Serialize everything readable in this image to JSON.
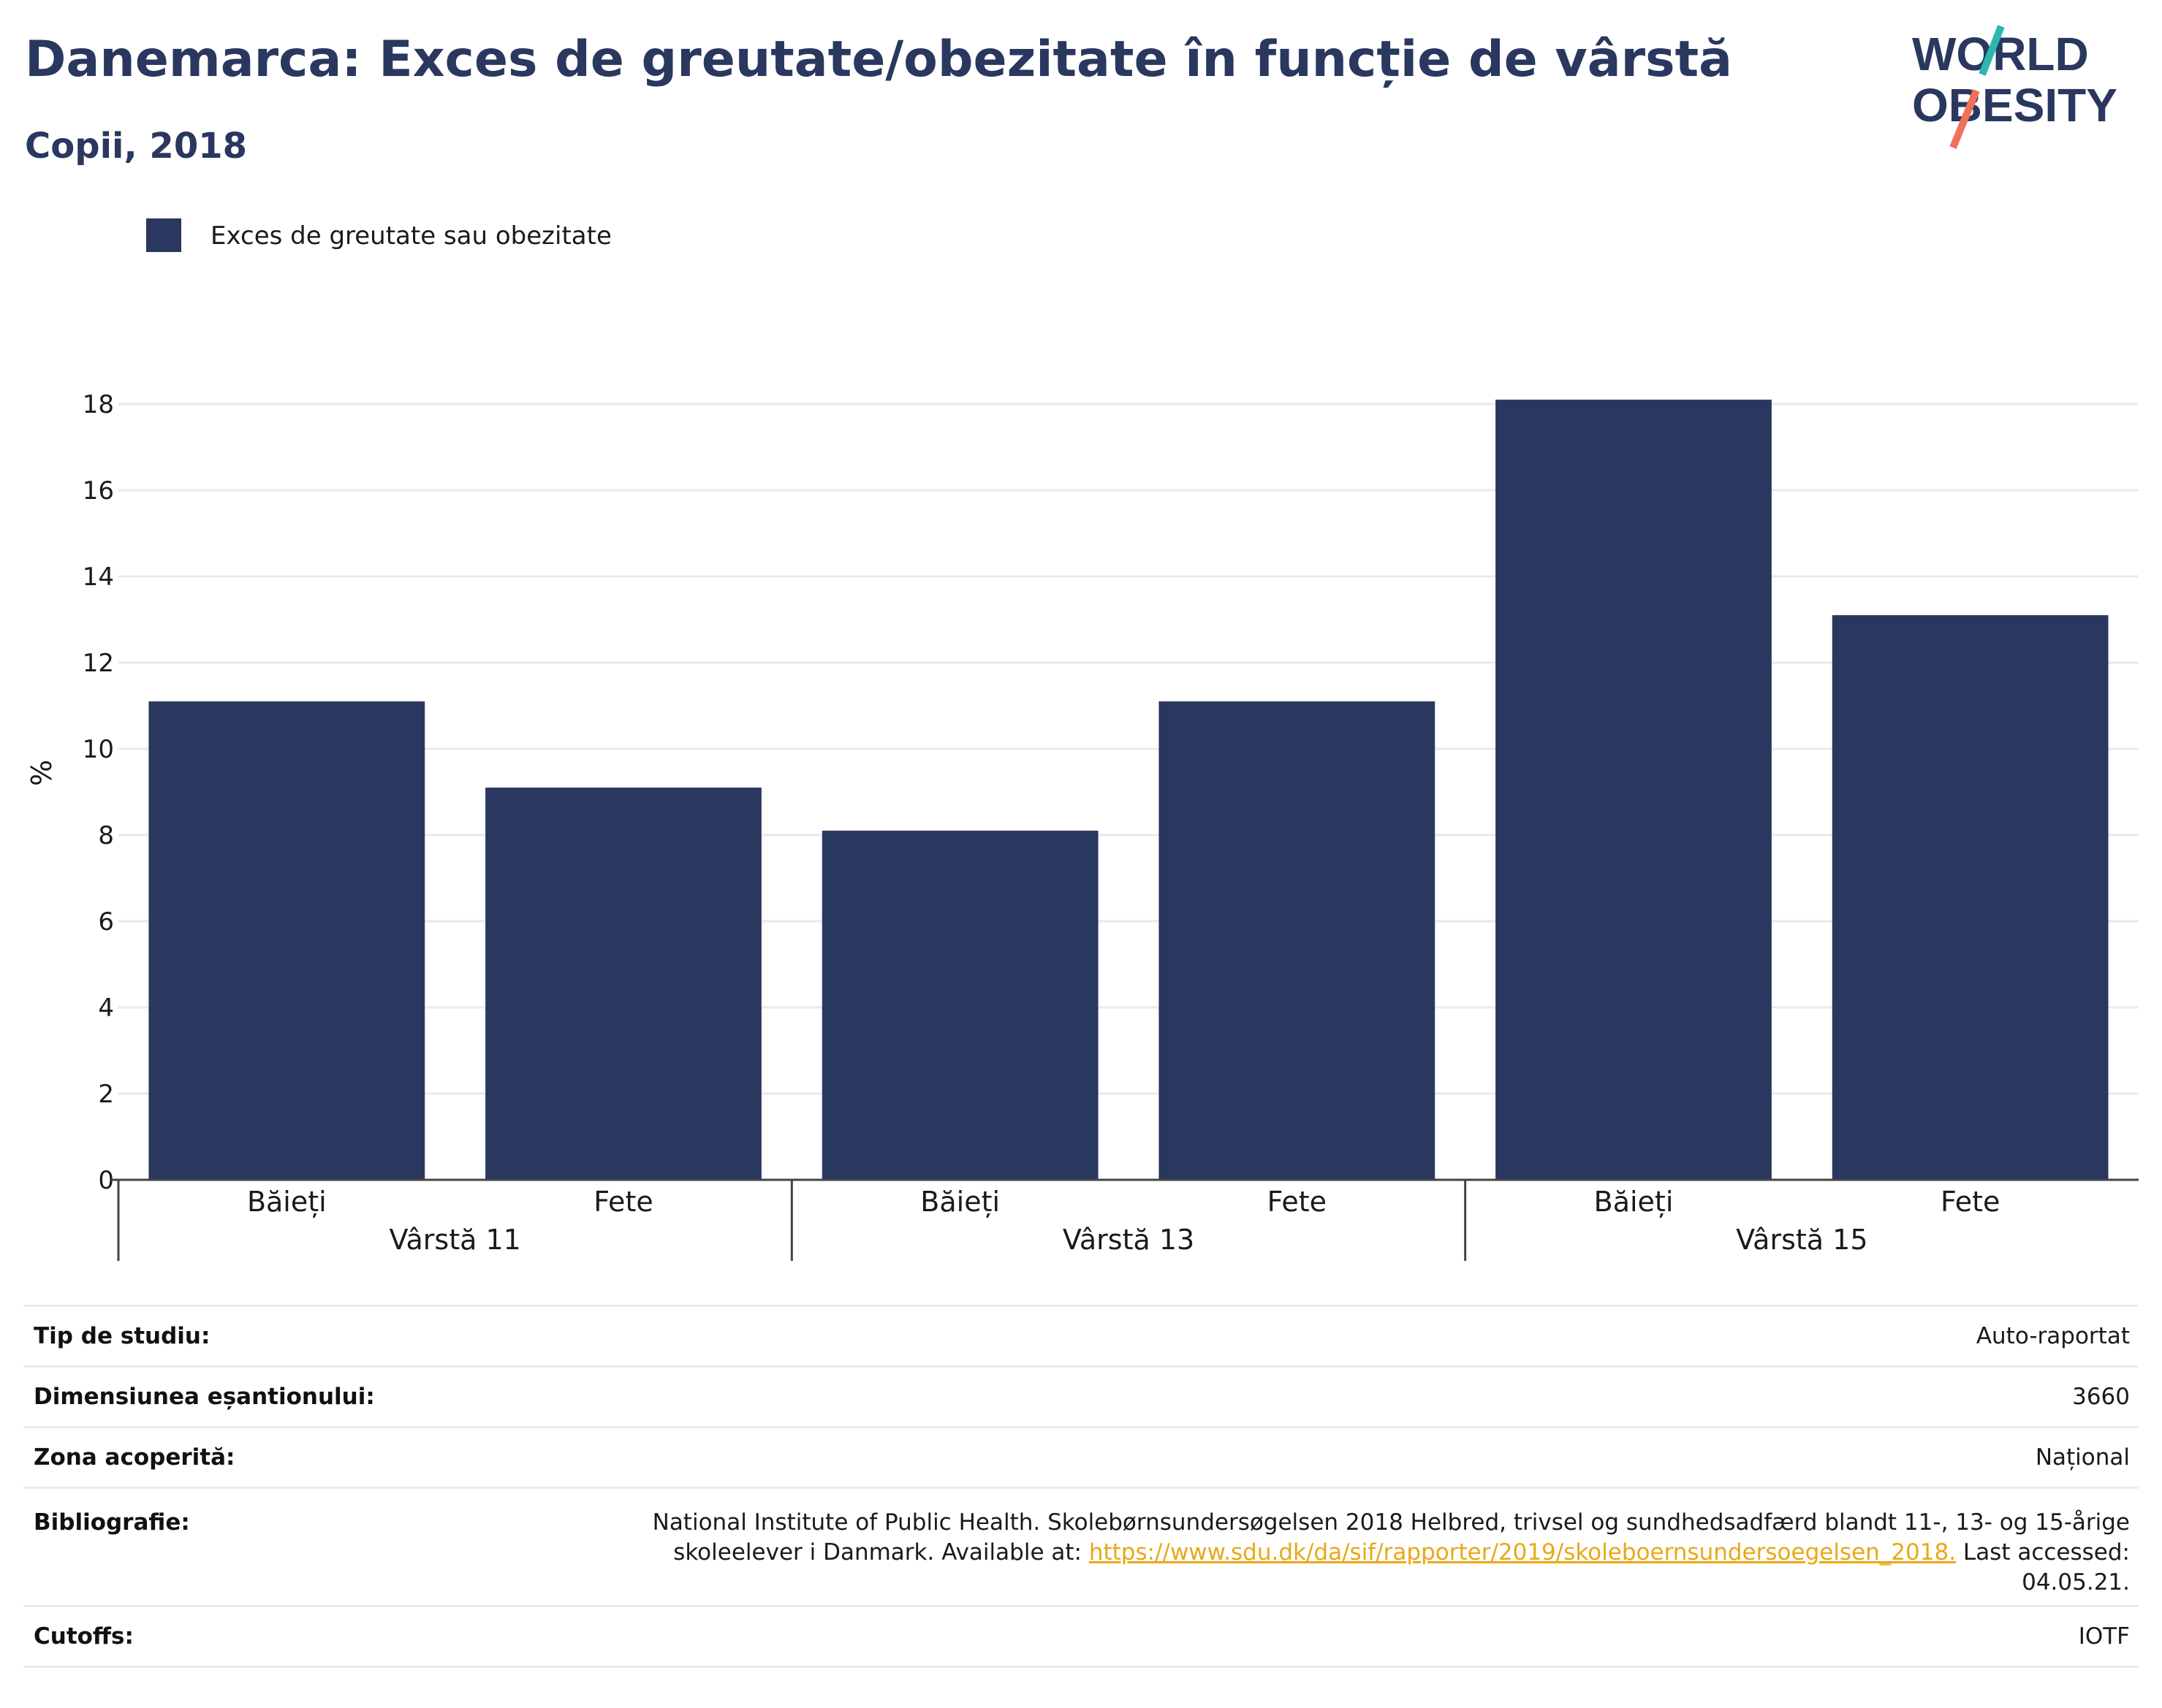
{
  "title": "Danemarca: Exces de greutate/obezitate în funcție de vârstă",
  "subtitle": "Copii, 2018",
  "logo": {
    "line1": "WORLD",
    "line2": "OBESITY"
  },
  "colors": {
    "bar": "#2a375f",
    "title": "#2a375f",
    "grid": "#e6e9f0",
    "link": "#e8a817",
    "logo_teal": "#2bb7b0",
    "logo_coral": "#f0705a"
  },
  "chart_data": {
    "type": "bar",
    "y_axis_label": "%",
    "ylim": [
      0,
      18.5
    ],
    "y_ticks": [
      0,
      2,
      4,
      6,
      8,
      10,
      12,
      14,
      16,
      18
    ],
    "grid": true,
    "legend_position": "top-left",
    "groups": [
      {
        "label": "Vârstă 11",
        "categories": [
          "Băieți",
          "Fete"
        ]
      },
      {
        "label": "Vârstă 13",
        "categories": [
          "Băieți",
          "Fete"
        ]
      },
      {
        "label": "Vârstă 15",
        "categories": [
          "Băieți",
          "Fete"
        ]
      }
    ],
    "series": [
      {
        "name": "Exces de greutate sau obezitate",
        "values": [
          11.1,
          9.1,
          8.1,
          11.1,
          18.1,
          13.1
        ]
      }
    ]
  },
  "info": {
    "study_type": {
      "label": "Tip de studiu:",
      "value": "Auto-raportat"
    },
    "sample_size": {
      "label": "Dimensiunea eșantionului:",
      "value": "3660"
    },
    "coverage": {
      "label": "Zona acoperită:",
      "value": "Național"
    },
    "bibliography": {
      "label": "Bibliografie:",
      "line1": "National Institute of Public Health. Skolebørnsundersøgelsen 2018 Helbred, trivsel og sundhedsadfærd blandt 11-, 13- og 15-årige",
      "line2_pre": "skoleelever i Danmark. Available at: ",
      "link": "https://www.sdu.dk/da/sif/rapporter/2019/skoleboernsundersoegelsen_2018.",
      "line2_post": " Last accessed:",
      "line3": "04.05.21."
    },
    "cutoffs": {
      "label": "Cutoffs:",
      "value": "IOTF"
    }
  }
}
